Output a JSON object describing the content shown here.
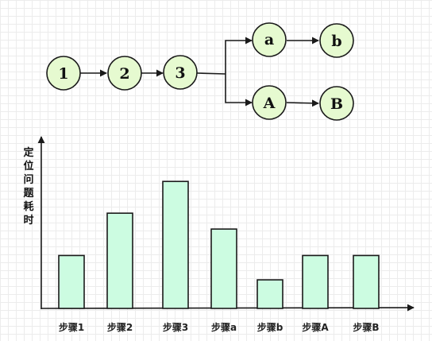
{
  "flow": {
    "nodes": [
      {
        "id": "n1",
        "label": "1"
      },
      {
        "id": "n2",
        "label": "2"
      },
      {
        "id": "n3",
        "label": "3"
      },
      {
        "id": "na",
        "label": "a"
      },
      {
        "id": "nb",
        "label": "b"
      },
      {
        "id": "nA",
        "label": "A"
      },
      {
        "id": "nB",
        "label": "B"
      }
    ],
    "edges": [
      {
        "from": "n1",
        "to": "n2"
      },
      {
        "from": "n2",
        "to": "n3"
      },
      {
        "from": "n3",
        "to": "na"
      },
      {
        "from": "n3",
        "to": "nA"
      },
      {
        "from": "na",
        "to": "nb"
      },
      {
        "from": "nA",
        "to": "nB"
      }
    ]
  },
  "chart_data": {
    "type": "bar",
    "ylabel": "定位问题耗时",
    "categories": [
      "步骤1",
      "步骤2",
      "步骤3",
      "步骤a",
      "步骤b",
      "步骤A",
      "步骤B"
    ],
    "values": [
      2.5,
      4.5,
      6.0,
      3.75,
      1.35,
      2.5,
      2.5
    ],
    "ylim": [
      0,
      8
    ]
  },
  "colors": {
    "node_fill": "#e6fad0",
    "bar_fill": "#ccfce1",
    "stroke": "#1a1a1a"
  }
}
